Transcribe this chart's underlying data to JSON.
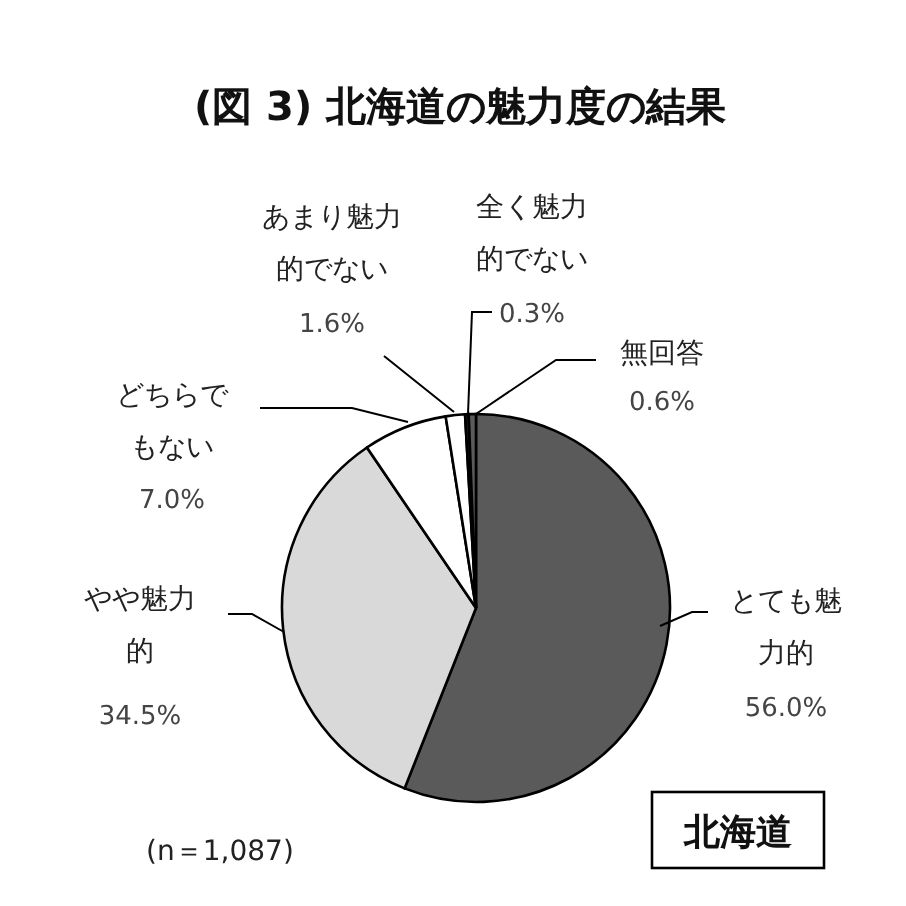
{
  "chart_data": {
    "type": "pie",
    "title": "(図 3) 北海道の魅力度の結果",
    "categories": [
      "とても魅力的",
      "やや魅力的",
      "どちらでもない",
      "あまり魅力的でない",
      "全く魅力的でない",
      "無回答"
    ],
    "values": [
      56.0,
      34.5,
      7.0,
      1.6,
      0.3,
      0.6
    ],
    "value_labels": [
      "56.0%",
      "34.5%",
      "7.0%",
      "1.6%",
      "0.3%",
      "0.6%"
    ],
    "colors": [
      "#5a5a5a",
      "#d9d9d9",
      "#ffffff",
      "#ffffff",
      "#1e1e1e",
      "#5a5a5a"
    ],
    "annotations": [
      "(n＝1,087)",
      "北海道"
    ]
  }
}
